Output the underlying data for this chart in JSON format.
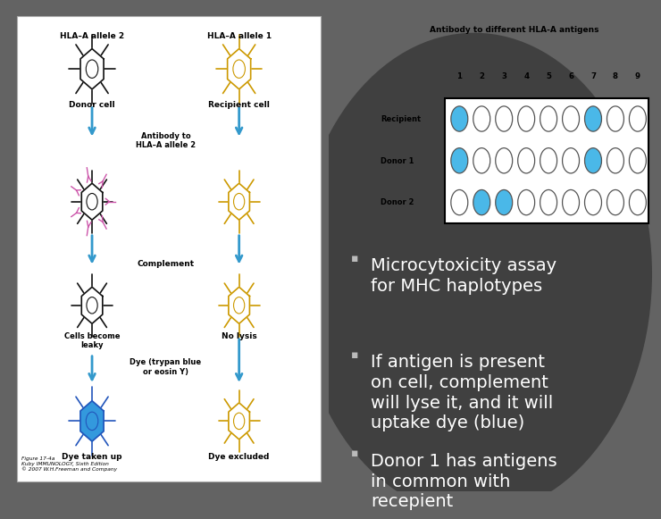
{
  "bg_color_left": "#696969",
  "bg_color_right": "#606060",
  "left_panel_bg": "#ffffff",
  "bullet_points": [
    "Microcytoxicity assay\nfor MHC haplotypes",
    "If antigen is present\non cell, complement\nwill lyse it, and it will\nuptake dye (blue)",
    "Donor 1 has antigens\nin common with\nrecepient"
  ],
  "bullet_color": "#aaaaaa",
  "text_color": "#ffffff",
  "table_title": "Antibody to different HLA-A antigens",
  "table_cols": [
    "1",
    "2",
    "3",
    "4",
    "5",
    "6",
    "7",
    "8",
    "9"
  ],
  "table_rows": [
    "Recipient",
    "Donor 1",
    "Donor 2"
  ],
  "filled_cells": {
    "Recipient": [
      0,
      6
    ],
    "Donor 1": [
      0,
      6
    ],
    "Donor 2": [
      1,
      2
    ]
  },
  "circle_color_filled": "#4ab8e8",
  "circle_color_empty": "#ffffff",
  "circle_edge": "#555555"
}
